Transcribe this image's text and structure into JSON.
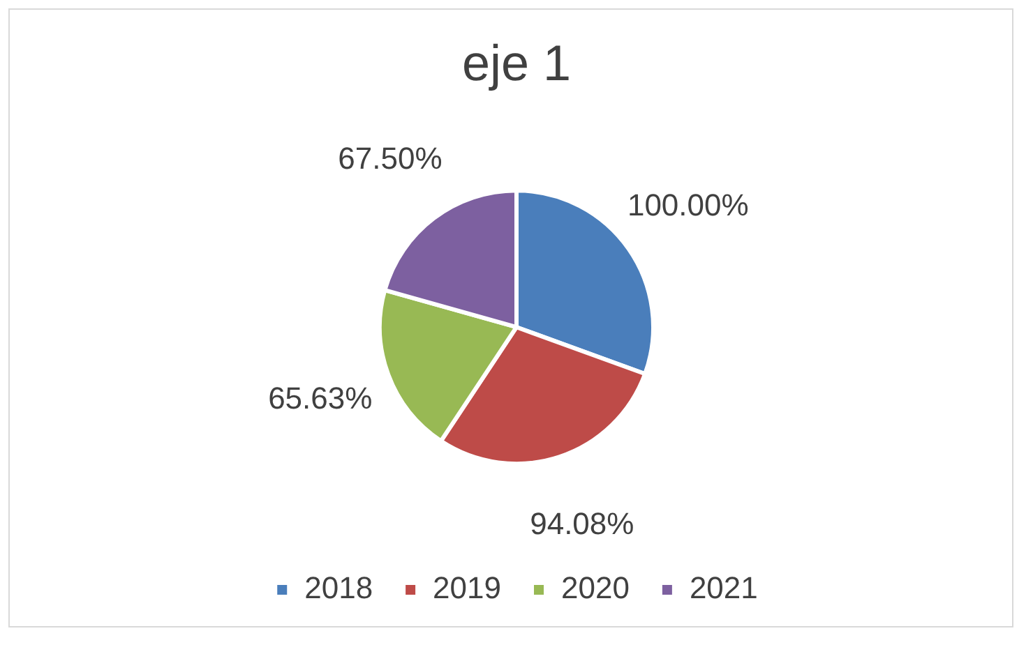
{
  "chart_data": {
    "type": "pie",
    "title": "eje 1",
    "categories": [
      "2018",
      "2019",
      "2020",
      "2021"
    ],
    "values": [
      100,
      94.08,
      65.63,
      67.5
    ],
    "value_labels": [
      "100.00%",
      "94.08%",
      "65.63%",
      "67.50%"
    ],
    "colors": [
      "#4a7ebb",
      "#be4b48",
      "#98b954",
      "#7d60a0"
    ],
    "legend": "bottom"
  }
}
